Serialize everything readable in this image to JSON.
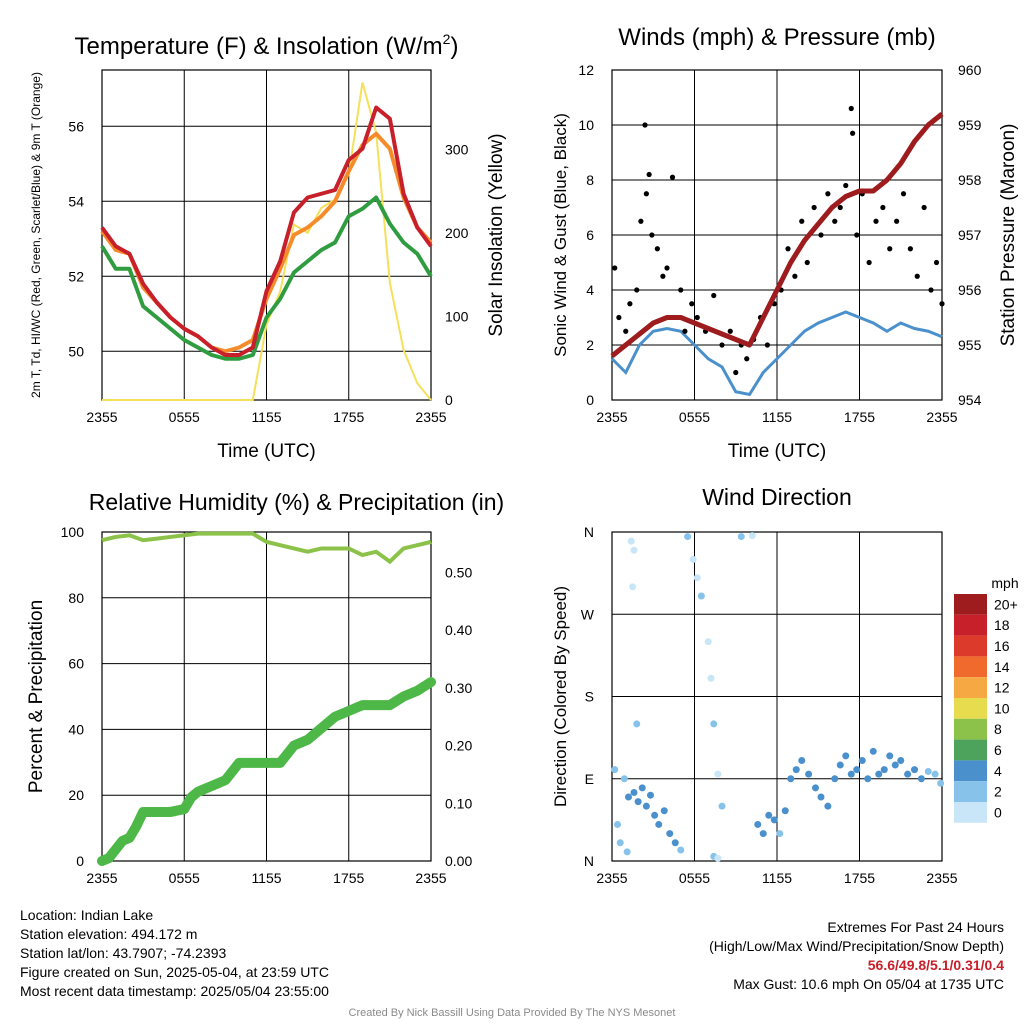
{
  "chart_data": [
    {
      "type": "line",
      "title": "Temperature (F) & Insolation (W/m²)",
      "xlabel": "Time (UTC)",
      "ylabel": "2m T, Td, HI/WC (Red, Green, Scarlet/Blue) & 9m T (Orange)",
      "ylabel2": "Solar Insolation (Yellow)",
      "x_ticks": [
        "2355",
        "0555",
        "1155",
        "1755",
        "2355"
      ],
      "ylim": [
        48.7,
        57.5
      ],
      "y_ticks": [
        50,
        52,
        54,
        56
      ],
      "y2lim": [
        0,
        395
      ],
      "y2_ticks": [
        0,
        100,
        200,
        300
      ],
      "grid": true,
      "x_hours": [
        0,
        1,
        2,
        3,
        4,
        5,
        6,
        7,
        8,
        9,
        10,
        11,
        12,
        13,
        14,
        15,
        16,
        17,
        18,
        19,
        20,
        21,
        22,
        23,
        24
      ],
      "series": [
        {
          "color": "#2f9c3f",
          "values": [
            52.8,
            52.2,
            52.2,
            51.2,
            50.9,
            50.6,
            50.3,
            50.1,
            49.9,
            49.8,
            49.8,
            49.9,
            50.9,
            51.4,
            52.1,
            52.4,
            52.7,
            52.9,
            53.6,
            53.8,
            54.1,
            53.4,
            52.9,
            52.6,
            52.0
          ]
        },
        {
          "color": "#f58c2c",
          "values": [
            53.2,
            52.7,
            52.6,
            51.7,
            51.3,
            50.9,
            50.6,
            50.4,
            50.1,
            50.0,
            50.1,
            50.3,
            51.4,
            52.2,
            53.1,
            53.3,
            53.6,
            54.0,
            54.8,
            55.5,
            55.8,
            55.4,
            54.1,
            53.3,
            52.9
          ]
        },
        {
          "color": "#c8202a",
          "values": [
            53.3,
            52.8,
            52.6,
            51.8,
            51.3,
            50.9,
            50.6,
            50.4,
            50.1,
            49.9,
            49.9,
            50.1,
            51.6,
            52.4,
            53.7,
            54.1,
            54.2,
            54.3,
            55.1,
            55.4,
            56.5,
            56.2,
            54.2,
            53.3,
            52.8
          ]
        }
      ],
      "insolation": {
        "color": "#f5e05a",
        "values": [
          0,
          0,
          0,
          0,
          0,
          0,
          0,
          0,
          0,
          0,
          0,
          0,
          90,
          130,
          210,
          200,
          230,
          240,
          270,
          380,
          320,
          140,
          60,
          20,
          0
        ]
      }
    },
    {
      "type": "scatter",
      "title": "Winds (mph) & Pressure (mb)",
      "xlabel": "Time (UTC)",
      "ylabel": "Sonic Wind & Gust (Blue, Black)",
      "ylabel2": "Station Pressure (Maroon)",
      "x_ticks": [
        "2355",
        "0555",
        "1155",
        "1755",
        "2355"
      ],
      "ylim": [
        0,
        12
      ],
      "y_ticks": [
        0,
        2,
        4,
        6,
        8,
        10,
        12
      ],
      "y2lim": [
        954,
        960
      ],
      "y2_ticks": [
        954,
        955,
        956,
        957,
        958,
        959,
        960
      ],
      "grid": true,
      "wind": {
        "color": "#4a90cc",
        "x_hours": [
          0,
          1,
          2,
          3,
          4,
          5,
          6,
          7,
          8,
          9,
          10,
          11,
          12,
          13,
          14,
          15,
          16,
          17,
          18,
          19,
          20,
          21,
          22,
          23,
          24
        ],
        "values": [
          1.5,
          1.0,
          2.0,
          2.5,
          2.6,
          2.5,
          2.0,
          1.5,
          1.2,
          0.3,
          0.2,
          1.0,
          1.5,
          2.0,
          2.5,
          2.8,
          3.0,
          3.2,
          3.0,
          2.8,
          2.5,
          2.8,
          2.6,
          2.5,
          2.3
        ]
      },
      "gust": {
        "color": "#000000",
        "x_hours": [
          0.2,
          0.5,
          1.0,
          1.3,
          1.8,
          2.1,
          2.4,
          2.5,
          2.7,
          2.9,
          3.3,
          3.7,
          4.0,
          4.4,
          5.0,
          5.3,
          5.8,
          6.2,
          6.8,
          7.4,
          8.0,
          8.6,
          9.0,
          9.4,
          9.8,
          10.3,
          10.8,
          11.3,
          11.8,
          12.3,
          12.8,
          13.3,
          13.8,
          14.2,
          14.7,
          15.2,
          15.7,
          16.2,
          16.6,
          17.0,
          17.4,
          17.5,
          17.8,
          18.2,
          18.7,
          19.2,
          19.7,
          20.2,
          20.7,
          21.2,
          21.7,
          22.2,
          22.7,
          23.2,
          23.6,
          24.0
        ],
        "values": [
          4.8,
          3.0,
          2.5,
          3.5,
          4.0,
          6.5,
          10.0,
          7.5,
          8.2,
          6.0,
          5.5,
          4.5,
          4.8,
          8.1,
          4.0,
          2.5,
          3.5,
          3.0,
          2.5,
          3.8,
          2.0,
          2.5,
          1.0,
          2.0,
          1.5,
          2.2,
          3.0,
          2.0,
          3.5,
          4.0,
          5.5,
          4.5,
          6.5,
          5.0,
          7.0,
          6.0,
          7.5,
          6.5,
          7.0,
          7.8,
          10.6,
          9.7,
          6.0,
          7.5,
          5.0,
          6.5,
          7.0,
          5.5,
          6.5,
          7.5,
          5.5,
          4.5,
          7.0,
          4.0,
          5.0,
          3.5
        ]
      },
      "pressure": {
        "color": "#9e1b1e",
        "x_hours": [
          0,
          1,
          2,
          3,
          4,
          5,
          6,
          7,
          8,
          9,
          10,
          11,
          12,
          13,
          14,
          15,
          16,
          17,
          18,
          19,
          20,
          21,
          22,
          23,
          24
        ],
        "values": [
          954.8,
          955.0,
          955.2,
          955.4,
          955.5,
          955.5,
          955.4,
          955.3,
          955.2,
          955.1,
          955.0,
          955.5,
          956.0,
          956.5,
          956.9,
          957.2,
          957.5,
          957.7,
          957.8,
          957.8,
          958.0,
          958.3,
          958.7,
          959.0,
          959.2
        ]
      }
    },
    {
      "type": "line",
      "title": "Relative Humidity (%) & Precipitation (in)",
      "xlabel": "",
      "ylabel": "Percent & Precipitation",
      "x_ticks": [
        "2355",
        "0555",
        "1155",
        "1755",
        "2355"
      ],
      "ylim": [
        0,
        100
      ],
      "y_ticks": [
        0,
        20,
        40,
        60,
        80,
        100
      ],
      "y2lim": [
        0,
        0.57
      ],
      "y2_ticks": [
        0.0,
        0.1,
        0.2,
        0.3,
        0.4,
        0.5
      ],
      "y2_tick_labels": [
        "0.00",
        "0.10",
        "0.20",
        "0.30",
        "0.40",
        "0.50"
      ],
      "grid": true,
      "rh": {
        "color": "#8cc24a",
        "x_hours": [
          0,
          1,
          2,
          3,
          4,
          5,
          6,
          7,
          8,
          9,
          10,
          11,
          12,
          13,
          14,
          15,
          16,
          17,
          18,
          19,
          20,
          21,
          22,
          23,
          24
        ],
        "values": [
          97.5,
          98.5,
          99,
          97.5,
          98,
          98.5,
          99,
          99.5,
          99.5,
          99.5,
          99.5,
          99.5,
          97,
          96,
          95,
          94,
          95,
          95,
          95,
          93,
          94,
          91,
          95,
          96,
          97
        ]
      },
      "precip": {
        "color": "#4db848",
        "x_hours": [
          0,
          0.5,
          1,
          1.5,
          2,
          2.5,
          3,
          3.5,
          4,
          5,
          6,
          6.5,
          7,
          8,
          9,
          10,
          11,
          12,
          13,
          14,
          15,
          16,
          17,
          18,
          19,
          20,
          21,
          22,
          23,
          24
        ],
        "values": [
          0.0,
          0.005,
          0.02,
          0.035,
          0.04,
          0.06,
          0.085,
          0.085,
          0.085,
          0.085,
          0.09,
          0.11,
          0.12,
          0.13,
          0.14,
          0.17,
          0.17,
          0.17,
          0.17,
          0.2,
          0.21,
          0.23,
          0.25,
          0.26,
          0.27,
          0.27,
          0.27,
          0.285,
          0.295,
          0.31
        ]
      }
    },
    {
      "type": "scatter",
      "title": "Wind Direction",
      "ylabel": "Direction (Colored By Speed)",
      "x_ticks": [
        "2355",
        "0555",
        "1155",
        "1755",
        "2355"
      ],
      "y_ticks": [
        "N",
        "E",
        "S",
        "W",
        "N"
      ],
      "ylim": [
        0,
        360
      ],
      "grid": true,
      "legend_title": "mph",
      "legend_labels": [
        "0",
        "2",
        "4",
        "6",
        "8",
        "10",
        "12",
        "14",
        "16",
        "18",
        "20+"
      ],
      "legend_colors": [
        "#c8e6f8",
        "#86c2ea",
        "#4a90cc",
        "#4ea35c",
        "#8cc24a",
        "#e6dc4e",
        "#f6a843",
        "#ef6a2c",
        "#dc3a2a",
        "#c8202a",
        "#9e1b1e"
      ],
      "points": [
        [
          0.2,
          100,
          1.5
        ],
        [
          0.4,
          40,
          2.5
        ],
        [
          0.6,
          20,
          1
        ],
        [
          0.9,
          90,
          1
        ],
        [
          1.1,
          10,
          1.5
        ],
        [
          1.4,
          350,
          0.5
        ],
        [
          1.5,
          300,
          0.5
        ],
        [
          1.6,
          340,
          0.5
        ],
        [
          1.8,
          150,
          2.5
        ],
        [
          1.2,
          70,
          4
        ],
        [
          1.6,
          75,
          3.5
        ],
        [
          1.9,
          65,
          4.5
        ],
        [
          2.2,
          80,
          3
        ],
        [
          2.5,
          60,
          4
        ],
        [
          2.8,
          72,
          3.5
        ],
        [
          3.1,
          50,
          3
        ],
        [
          3.4,
          40,
          4
        ],
        [
          3.8,
          55,
          3.5
        ],
        [
          4.2,
          30,
          4
        ],
        [
          4.6,
          20,
          3
        ],
        [
          5.0,
          12,
          2.5
        ],
        [
          5.5,
          355,
          1
        ],
        [
          5.9,
          330,
          0.5
        ],
        [
          6.2,
          310,
          0.5
        ],
        [
          6.5,
          290,
          1
        ],
        [
          7.0,
          240,
          0.5
        ],
        [
          7.2,
          200,
          0.5
        ],
        [
          7.4,
          150,
          1
        ],
        [
          7.7,
          95,
          0.5
        ],
        [
          8.0,
          60,
          1
        ],
        [
          7.4,
          5,
          1
        ],
        [
          7.7,
          3,
          0.5
        ],
        [
          9.4,
          355,
          1
        ],
        [
          10.2,
          356,
          0.5
        ],
        [
          10.6,
          40,
          3
        ],
        [
          11.0,
          30,
          3.5
        ],
        [
          11.4,
          50,
          4
        ],
        [
          11.8,
          45,
          3
        ],
        [
          12.2,
          30,
          2.5
        ],
        [
          12.6,
          55,
          3
        ],
        [
          13.0,
          90,
          4
        ],
        [
          13.4,
          100,
          3.5
        ],
        [
          13.8,
          110,
          4
        ],
        [
          14.3,
          95,
          4.5
        ],
        [
          14.8,
          80,
          3
        ],
        [
          15.2,
          70,
          4
        ],
        [
          15.7,
          60,
          3.5
        ],
        [
          16.2,
          90,
          4
        ],
        [
          16.6,
          105,
          3.5
        ],
        [
          17.0,
          115,
          3
        ],
        [
          17.4,
          95,
          4
        ],
        [
          17.8,
          100,
          4.5
        ],
        [
          18.2,
          110,
          3.5
        ],
        [
          18.6,
          90,
          4
        ],
        [
          19.0,
          120,
          3
        ],
        [
          19.4,
          95,
          3.5
        ],
        [
          19.8,
          100,
          4
        ],
        [
          20.2,
          115,
          3
        ],
        [
          20.6,
          105,
          3.5
        ],
        [
          21.0,
          110,
          4
        ],
        [
          21.5,
          95,
          3
        ],
        [
          22.0,
          100,
          3.5
        ],
        [
          22.5,
          90,
          3
        ],
        [
          23.0,
          98,
          2.5
        ],
        [
          23.5,
          95,
          2.5
        ],
        [
          23.9,
          85,
          2
        ]
      ]
    }
  ],
  "info": {
    "location": "Location: Indian Lake",
    "elevation": "Station elevation: 494.172 m",
    "latlon": "Station lat/lon: 43.7907; -74.2393",
    "created": "Figure created on Sun, 2025-05-04, at 23:59 UTC",
    "recent": "Most recent data timestamp: 2025/05/04 23:55:00"
  },
  "extremes": {
    "title": "Extremes For Past 24 Hours",
    "subtitle": "(High/Low/Max Wind/Precipitation/Snow Depth)",
    "values": "56.6/49.8/5.1/0.31/0.4",
    "max_gust": "Max Gust: 10.6 mph On 05/04 at 1735 UTC"
  },
  "credit": "Created By Nick Bassill Using Data Provided By The NYS Mesonet"
}
